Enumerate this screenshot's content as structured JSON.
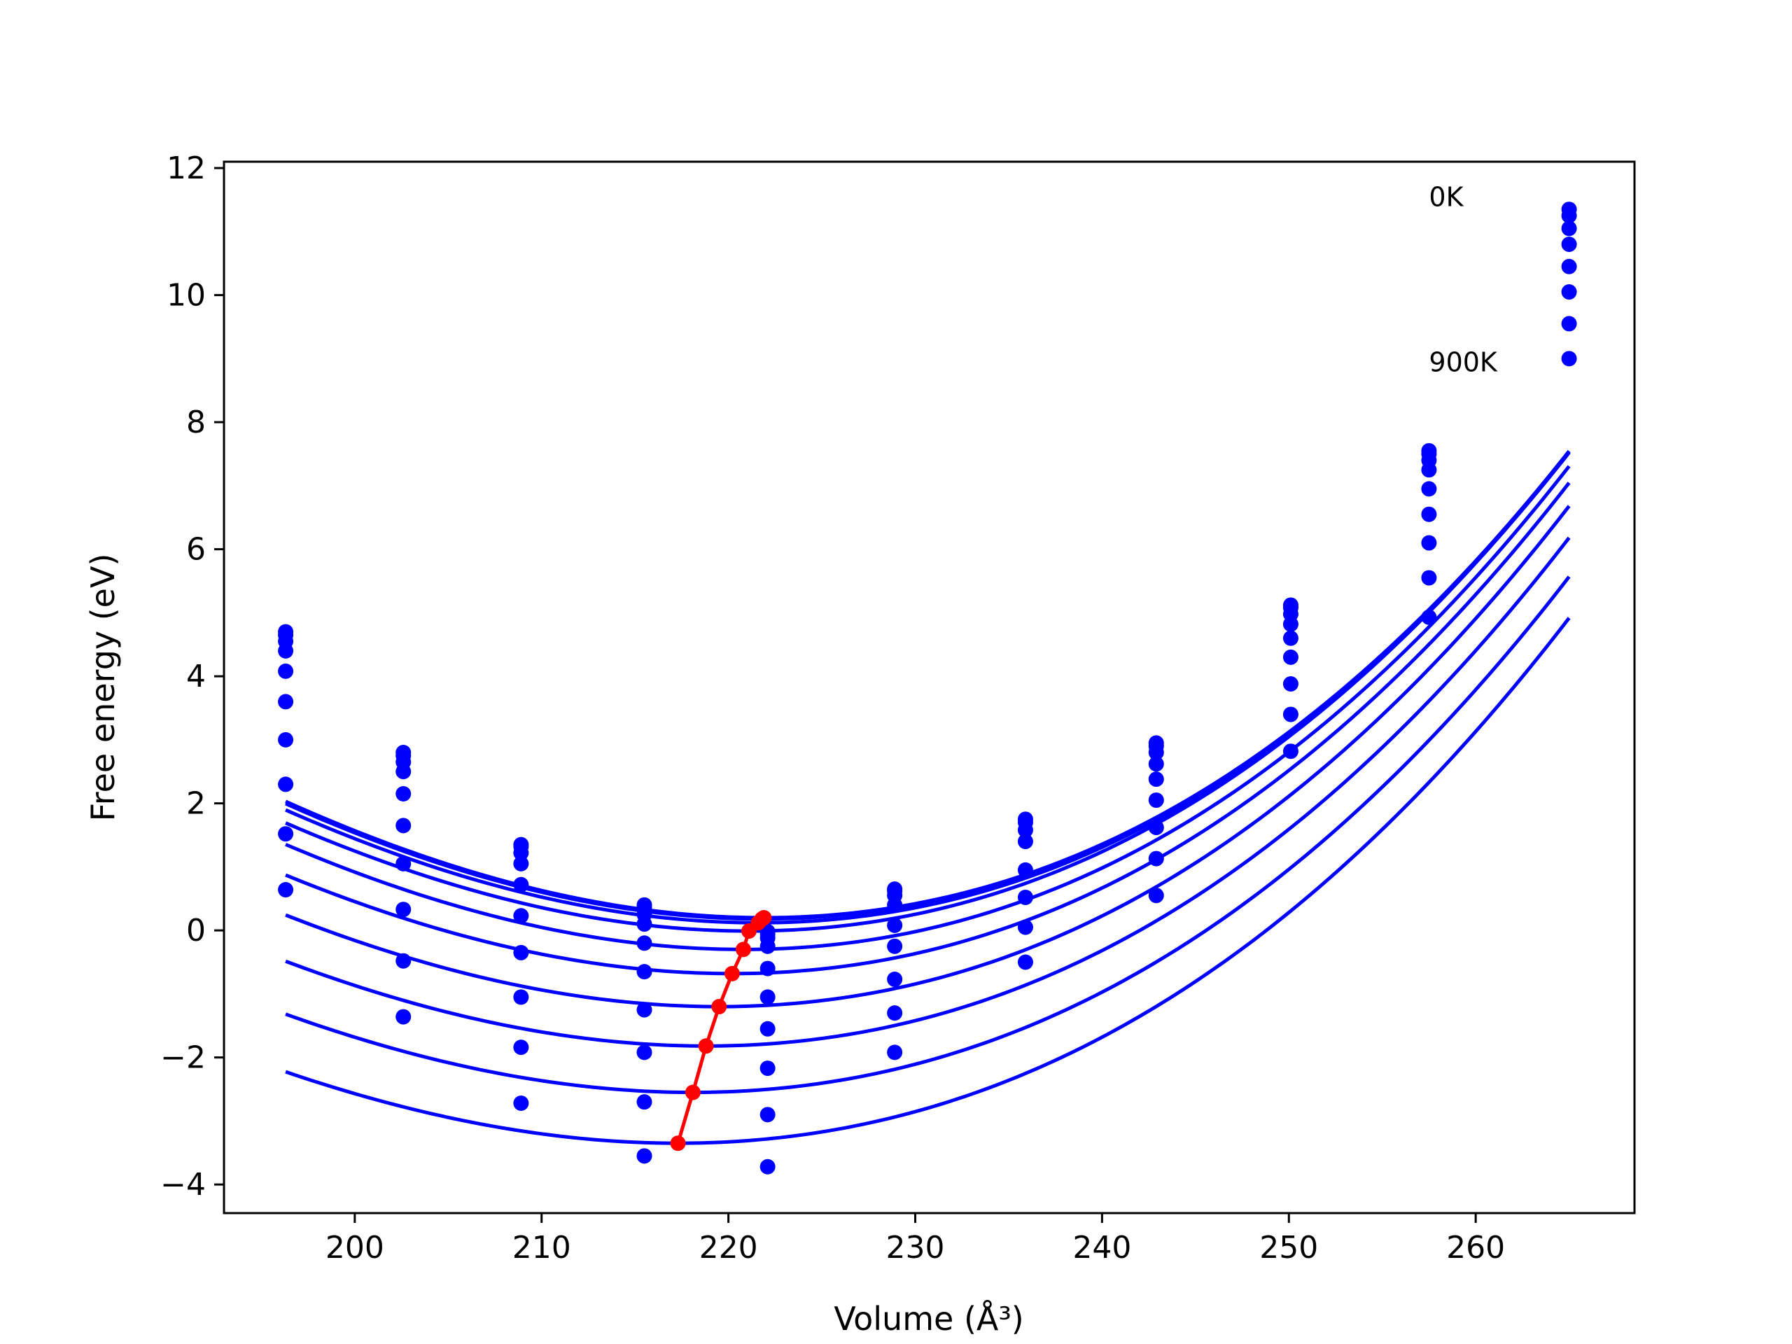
{
  "chart_data": {
    "type": "scatter",
    "xlabel": "Volume (Å³)",
    "ylabel": "Free energy (eV)",
    "xlim": [
      193,
      268.5
    ],
    "ylim": [
      -4.45,
      12.1
    ],
    "xticks": [
      200,
      210,
      220,
      230,
      240,
      250,
      260
    ],
    "yticks": [
      -4,
      -2,
      0,
      2,
      4,
      6,
      8,
      10,
      12
    ],
    "x": [
      196.3,
      202.6,
      208.9,
      215.5,
      222.1,
      228.9,
      235.9,
      242.9,
      250.1,
      257.5,
      265.0
    ],
    "fit_range": [
      196.3,
      265.0
    ],
    "annotations": [
      {
        "text": "0K",
        "x": 257.5,
        "y": 11.4
      },
      {
        "text": "900K",
        "x": 257.5,
        "y": 8.8
      }
    ],
    "colors": {
      "curves": "#0000ff",
      "points": "#0000ff",
      "minimum_line": "#ff0000"
    },
    "series": [
      {
        "values": [
          4.7,
          2.8,
          1.35,
          0.4,
          -0.02,
          0.65,
          1.75,
          2.95,
          5.12,
          7.55,
          11.35
        ],
        "fit": {
          "vmin": 221.9,
          "fmin": 0.2,
          "a": 0.003225,
          "b": 1.69e-05
        }
      },
      {
        "values": [
          4.65,
          2.75,
          1.32,
          0.36,
          -0.06,
          0.62,
          1.7,
          2.9,
          5.08,
          7.5,
          11.25
        ],
        "fit": {
          "vmin": 221.8,
          "fmin": 0.18,
          "a": 0.00322,
          "b": 1.68e-05
        }
      },
      {
        "values": [
          4.55,
          2.65,
          1.22,
          0.25,
          -0.12,
          0.55,
          1.58,
          2.8,
          4.98,
          7.4,
          11.05
        ],
        "fit": {
          "vmin": 221.6,
          "fmin": 0.12,
          "a": 0.0032,
          "b": 1.68e-05
        }
      },
      {
        "values": [
          4.4,
          2.5,
          1.05,
          0.1,
          -0.25,
          0.4,
          1.4,
          2.62,
          4.82,
          7.25,
          10.8
        ],
        "fit": {
          "vmin": 221.1,
          "fmin": -0.01,
          "a": 0.00318,
          "b": 1.67e-05
        }
      },
      {
        "values": [
          4.08,
          2.15,
          0.72,
          -0.2,
          -0.6,
          0.08,
          0.95,
          2.38,
          4.6,
          6.95,
          10.45
        ],
        "fit": {
          "vmin": 220.8,
          "fmin": -0.3,
          "a": 0.00316,
          "b": 1.66e-05
        }
      },
      {
        "values": [
          3.6,
          1.65,
          0.23,
          -0.65,
          -1.05,
          -0.25,
          0.52,
          2.05,
          4.3,
          6.55,
          10.05
        ],
        "fit": {
          "vmin": 220.2,
          "fmin": -0.68,
          "a": 0.00311,
          "b": 1.65e-05
        }
      },
      {
        "values": [
          3.0,
          1.05,
          -0.35,
          -1.25,
          -1.55,
          -0.77,
          0.05,
          1.62,
          3.88,
          6.1,
          9.55
        ],
        "fit": {
          "vmin": 219.5,
          "fmin": -1.2,
          "a": 0.00306,
          "b": 1.64e-05
        }
      },
      {
        "values": [
          2.3,
          0.33,
          -1.05,
          -1.92,
          -2.17,
          -1.3,
          -0.5,
          1.13,
          3.4,
          5.55,
          9.0
        ],
        "fit": {
          "vmin": 218.8,
          "fmin": -1.82,
          "a": 0.003,
          "b": 1.62e-05
        }
      },
      {
        "values": [
          1.52,
          -0.48,
          -1.84,
          -2.7,
          -2.9,
          -1.92,
          null,
          0.55,
          2.82,
          4.93,
          null
        ],
        "fit": {
          "vmin": 218.1,
          "fmin": -2.55,
          "a": 0.00294,
          "b": 1.6e-05
        }
      },
      {
        "values": [
          0.64,
          -1.36,
          -2.72,
          -3.55,
          -3.72,
          null,
          null,
          null,
          null,
          null,
          null
        ],
        "fit": {
          "vmin": 217.3,
          "fmin": -3.35,
          "a": 0.00288,
          "b": 1.58e-05
        }
      }
    ],
    "minimum_points": [
      {
        "x": 217.3,
        "y": -3.35
      },
      {
        "x": 218.1,
        "y": -2.55
      },
      {
        "x": 218.8,
        "y": -1.82
      },
      {
        "x": 219.5,
        "y": -1.2
      },
      {
        "x": 220.2,
        "y": -0.68
      },
      {
        "x": 220.8,
        "y": -0.3
      },
      {
        "x": 221.1,
        "y": -0.01
      },
      {
        "x": 221.6,
        "y": 0.12
      },
      {
        "x": 221.8,
        "y": 0.18
      },
      {
        "x": 221.9,
        "y": 0.2
      }
    ]
  }
}
